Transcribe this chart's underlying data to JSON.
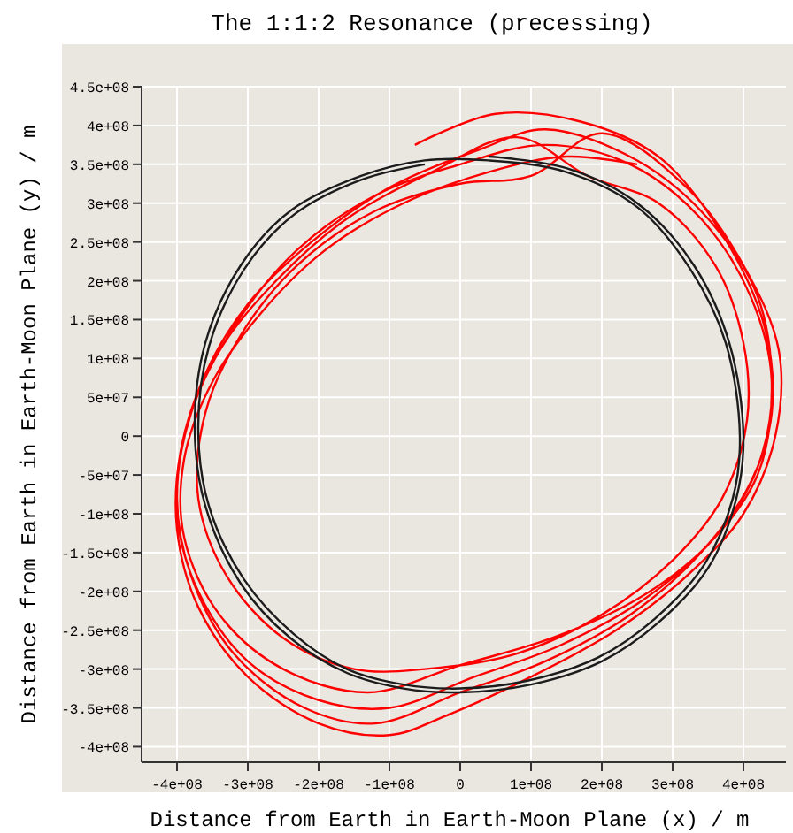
{
  "chart_data": {
    "type": "line",
    "title": "The 1:1:2 Resonance (precessing)",
    "xlabel": "Distance from Earth in Earth-Moon Plane (x) / m",
    "ylabel": "Distance from Earth in Earth-Moon Plane (y) / m",
    "xlim": [
      -450000000.0,
      460000000.0
    ],
    "ylim": [
      -420000000.0,
      450000000.0
    ],
    "xticks": [
      {
        "value": -400000000.0,
        "label": "-4e+08"
      },
      {
        "value": -300000000.0,
        "label": "-3e+08"
      },
      {
        "value": -200000000.0,
        "label": "-2e+08"
      },
      {
        "value": -100000000.0,
        "label": "-1e+08"
      },
      0,
      {
        "value": 100000000.0,
        "label": "1e+08"
      },
      {
        "value": 200000000.0,
        "label": "2e+08"
      },
      {
        "value": 300000000.0,
        "label": "3e+08"
      },
      {
        "value": 400000000.0,
        "label": "4e+08"
      }
    ],
    "yticks": [
      {
        "value": -400000000.0,
        "label": "-4e+08"
      },
      {
        "value": -350000000.0,
        "label": "-3.5e+08"
      },
      {
        "value": -300000000.0,
        "label": "-3e+08"
      },
      {
        "value": -250000000.0,
        "label": "-2.5e+08"
      },
      {
        "value": -200000000.0,
        "label": "-2e+08"
      },
      {
        "value": -150000000.0,
        "label": "-1.5e+08"
      },
      {
        "value": -100000000.0,
        "label": "-1e+08"
      },
      {
        "value": -50000000.0,
        "label": "-5e+07"
      },
      0,
      {
        "value": 50000000.0,
        "label": "5e+07"
      },
      {
        "value": 100000000.0,
        "label": "1e+08"
      },
      {
        "value": 150000000.0,
        "label": "1.5e+08"
      },
      {
        "value": 200000000.0,
        "label": "2e+08"
      },
      {
        "value": 250000000.0,
        "label": "2.5e+08"
      },
      {
        "value": 300000000.0,
        "label": "3e+08"
      },
      {
        "value": 350000000.0,
        "label": "3.5e+08"
      },
      {
        "value": 400000000.0,
        "label": "4e+08"
      },
      {
        "value": 450000000.0,
        "label": "4.5e+08"
      }
    ],
    "grid": true,
    "marker": "none",
    "line_style": "solid",
    "series": [
      {
        "color": "#1c1c1c",
        "x": [
          40000000.0,
          150000000.0,
          250000000.0,
          330000000.0,
          380000000.0,
          400000000.0,
          390000000.0,
          350000000.0,
          280000000.0,
          200000000.0,
          100000000.0,
          0,
          -80000000.0,
          -160000000.0,
          -240000000.0,
          -310000000.0,
          -360000000.0,
          -375000000.0,
          -360000000.0,
          -310000000.0,
          -240000000.0,
          -140000000.0,
          -50000000.0,
          40000000.0,
          150000000.0,
          250000000.0,
          325000000.0,
          375000000.0,
          395000000.0,
          385000000.0,
          345000000.0,
          275000000.0,
          195000000.0,
          95000000.0,
          0,
          -80000000.0,
          -160000000.0,
          -235000000.0,
          -305000000.0,
          -355000000.0,
          -370000000.0,
          -355000000.0,
          -305000000.0,
          -235000000.0,
          -140000000.0,
          -50000000.0
        ],
        "values": [
          360000000.0,
          345000000.0,
          300000000.0,
          220000000.0,
          120000000.0,
          0,
          -80000000.0,
          -170000000.0,
          -240000000.0,
          -290000000.0,
          -320000000.0,
          -330000000.0,
          -325000000.0,
          -305000000.0,
          -260000000.0,
          -190000000.0,
          -90000000.0,
          10000000.0,
          120000000.0,
          220000000.0,
          290000000.0,
          335000000.0,
          355000000.0,
          355000000.0,
          340000000.0,
          295000000.0,
          215000000.0,
          120000000.0,
          0,
          -80000000.0,
          -165000000.0,
          -235000000.0,
          -285000000.0,
          -315000000.0,
          -325000000.0,
          -320000000.0,
          -300000000.0,
          -255000000.0,
          -185000000.0,
          -90000000.0,
          10000000.0,
          115000000.0,
          215000000.0,
          285000000.0,
          330000000.0,
          350000000.0
        ]
      },
      {
        "color": "#ff0000",
        "x": [
          -64000000.0,
          50000000.0,
          170000000.0,
          280000000.0,
          370000000.0,
          430000000.0,
          440000000.0,
          410000000.0,
          340000000.0,
          240000000.0,
          120000000.0,
          0,
          -120000000.0,
          -220000000.0,
          -320000000.0,
          -380000000.0,
          -400000000.0,
          -380000000.0,
          -320000000.0,
          -230000000.0,
          -120000000.0,
          0,
          120000000.0,
          240000000.0,
          340000000.0,
          410000000.0,
          440000000.0,
          420000000.0,
          360000000.0,
          260000000.0,
          140000000.0,
          20000000.0,
          -100000000.0,
          -200000000.0,
          -300000000.0,
          -370000000.0,
          -400000000.0,
          -390000000.0,
          -340000000.0,
          -260000000.0,
          -160000000.0,
          -40000000.0,
          80000000.0,
          180000000.0,
          280000000.0,
          360000000.0,
          400000000.0,
          405000000.0,
          370000000.0,
          300000000.0,
          200000000.0,
          80000000.0,
          -50000000.0,
          -150000000.0,
          -250000000.0,
          -330000000.0,
          -370000000.0,
          -360000000.0,
          -310000000.0,
          -230000000.0,
          -120000000.0,
          0,
          100000000.0,
          200000000.0,
          320000000.0,
          400000000.0,
          450000000.0,
          445000000.0,
          400000000.0,
          320000000.0,
          220000000.0,
          100000000.0,
          -20000000.0,
          -100000000.0,
          -200000000.0,
          -300000000.0,
          -370000000.0,
          -400000000.0,
          -395000000.0,
          -360000000.0,
          -300000000.0,
          -210000000.0,
          -100000000.0,
          30000000.0,
          120000000.0,
          250000000.0,
          350000000.0,
          420000000.0,
          440000000.0,
          420000000.0,
          350000000.0,
          250000000.0,
          130000000.0,
          0,
          -130000000.0,
          -250000000.0,
          -340000000.0,
          -390000000.0,
          -390000000.0,
          -350000000.0,
          -280000000.0,
          -190000000.0,
          -80000000.0,
          40000000.0,
          150000000.0,
          250000000.0
        ],
        "values": [
          375000000.0,
          415000000.0,
          405000000.0,
          360000000.0,
          260000000.0,
          140000000.0,
          30000000.0,
          -60000000.0,
          -150000000.0,
          -230000000.0,
          -290000000.0,
          -330000000.0,
          -370000000.0,
          -350000000.0,
          -280000000.0,
          -180000000.0,
          -80000000.0,
          30000000.0,
          140000000.0,
          240000000.0,
          310000000.0,
          350000000.0,
          375000000.0,
          350000000.0,
          280000000.0,
          180000000.0,
          70000000.0,
          -40000000.0,
          -130000000.0,
          -210000000.0,
          -270000000.0,
          -310000000.0,
          -350000000.0,
          -340000000.0,
          -290000000.0,
          -200000000.0,
          -100000000.0,
          0,
          110000000.0,
          200000000.0,
          280000000.0,
          340000000.0,
          385000000.0,
          335000000.0,
          300000000.0,
          220000000.0,
          120000000.0,
          20000000.0,
          -80000000.0,
          -160000000.0,
          -230000000.0,
          -280000000.0,
          -300000000.0,
          -300000000.0,
          -260000000.0,
          -180000000.0,
          -80000000.0,
          30000000.0,
          130000000.0,
          220000000.0,
          290000000.0,
          325000000.0,
          335000000.0,
          390000000.0,
          320000000.0,
          220000000.0,
          110000000.0,
          0,
          -100000000.0,
          -180000000.0,
          -250000000.0,
          -310000000.0,
          -360000000.0,
          -385000000.0,
          -370000000.0,
          -310000000.0,
          -220000000.0,
          -120000000.0,
          -20000000.0,
          80000000.0,
          170000000.0,
          250000000.0,
          320000000.0,
          370000000.0,
          395000000.0,
          355000000.0,
          280000000.0,
          180000000.0,
          60000000.0,
          -50000000.0,
          -140000000.0,
          -210000000.0,
          -260000000.0,
          -295000000.0,
          -330000000.0,
          -300000000.0,
          -230000000.0,
          -130000000.0,
          -30000000.0,
          70000000.0,
          160000000.0,
          240000000.0,
          300000000.0,
          340000000.0,
          360000000.0,
          350000000.0
        ]
      }
    ]
  }
}
